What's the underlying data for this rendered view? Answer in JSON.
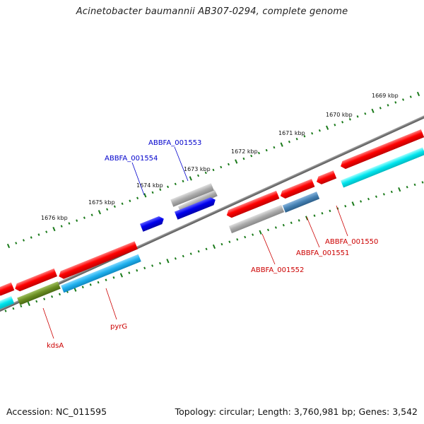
{
  "title": "Acinetobacter baumannii AB307-0294, complete genome",
  "footer": {
    "accession": "Accession: NC_011595",
    "topology": "Topology: circular; Length: 3,760,981 bp; Genes: 3,542"
  },
  "ticks": [
    {
      "label": "1669 kbp"
    },
    {
      "label": "1670 kbp"
    },
    {
      "label": "1671 kbp"
    },
    {
      "label": "1672 kbp"
    },
    {
      "label": "1673 kbp"
    },
    {
      "label": "1674 kbp"
    },
    {
      "label": "1675 kbp"
    },
    {
      "label": "1676 kbp"
    }
  ],
  "genes": [
    {
      "name": "ABBFA_001553",
      "color": "#0000cc"
    },
    {
      "name": "ABBFA_001554",
      "color": "#0000cc"
    },
    {
      "name": "ABBFA_001550",
      "color": "#cc0000"
    },
    {
      "name": "ABBFA_001551",
      "color": "#cc0000"
    },
    {
      "name": "ABBFA_001552",
      "color": "#cc0000"
    },
    {
      "name": "pyrG",
      "color": "#cc0000"
    },
    {
      "name": "kdsA",
      "color": "#cc0000"
    }
  ],
  "colors": {
    "cds_forward": "#ff0000",
    "cds_reverse_blue": "#0000ee",
    "rna_grey": "#a8a8a8",
    "cyan_track": "#00e5ee",
    "olive_track": "#6b8e23",
    "steel_track": "#4682b4",
    "backbone": "#777777",
    "tick_green": "#1a7a1a"
  }
}
